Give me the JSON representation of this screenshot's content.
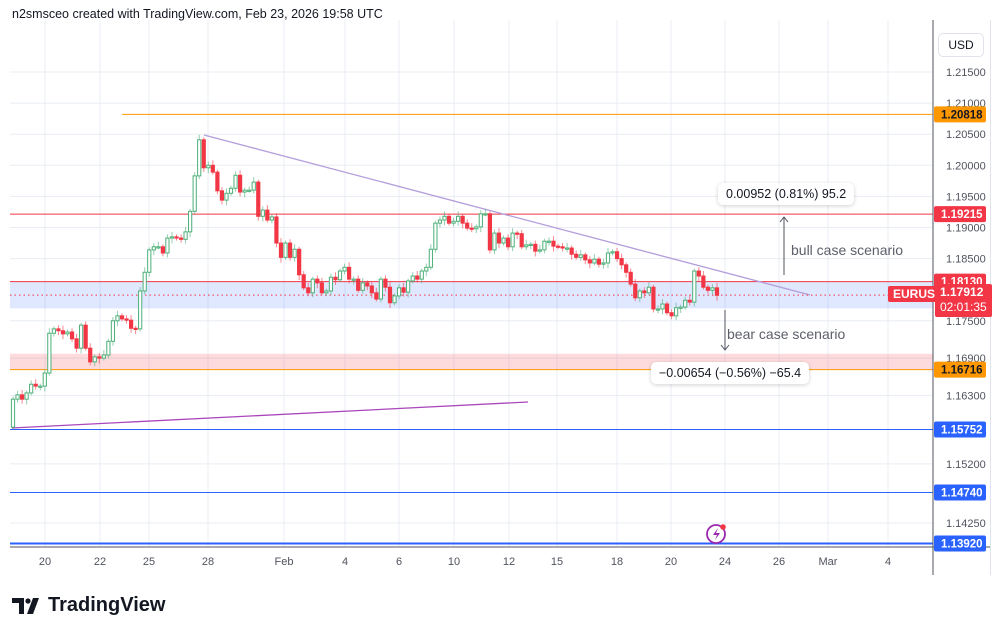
{
  "header": {
    "attribution": "n2smsceo created with TradingView.com, Feb 23, 2026 19:58 UTC"
  },
  "currency_button": "USD",
  "footer": {
    "logo": "TradingView"
  },
  "colors": {
    "up": "#26a69a",
    "upHollow": "#4caf78",
    "down": "#f23645",
    "orange": "#ff9800",
    "blue": "#2962ff",
    "red": "#f23645",
    "purple": "#b39ddb",
    "magenta": "#ab47bc"
  },
  "chart_data": {
    "type": "candlestick",
    "symbol": "EURUSD",
    "ylim": [
      1.1385,
      1.2205
    ],
    "y_ticks": [
      "1.21500",
      "1.21000",
      "1.20500",
      "1.20000",
      "1.19500",
      "1.19000",
      "1.18500",
      "1.17500",
      "1.16900",
      "1.16300",
      "1.15200",
      "1.14250"
    ],
    "x_ticks": [
      "20",
      "22",
      "25",
      "28",
      "Feb",
      "4",
      "6",
      "10",
      "12",
      "15",
      "18",
      "20",
      "24",
      "26",
      "Mar",
      "4"
    ],
    "first_open": 1.1579,
    "closes": [
      1.1624,
      1.1631,
      1.1624,
      1.1634,
      1.1648,
      1.1645,
      1.1645,
      1.1666,
      1.173,
      1.1737,
      1.1734,
      1.1729,
      1.1732,
      1.1721,
      1.1706,
      1.1743,
      1.1706,
      1.1684,
      1.1692,
      1.169,
      1.1695,
      1.1717,
      1.175,
      1.1758,
      1.1753,
      1.1751,
      1.1738,
      1.1737,
      1.1798,
      1.1828,
      1.1864,
      1.1869,
      1.1869,
      1.1859,
      1.1883,
      1.1885,
      1.1883,
      1.1881,
      1.1893,
      1.1926,
      1.1983,
      1.2041,
      1.1996,
      1.2,
      1.1989,
      1.1959,
      1.1944,
      1.1955,
      1.1963,
      1.1984,
      1.1957,
      1.196,
      1.196,
      1.1973,
      1.1918,
      1.1928,
      1.1912,
      1.1917,
      1.1875,
      1.1852,
      1.1875,
      1.1852,
      1.1865,
      1.1824,
      1.1803,
      1.1795,
      1.1817,
      1.1811,
      1.1795,
      1.1798,
      1.182,
      1.1816,
      1.183,
      1.1836,
      1.1817,
      1.1817,
      1.1799,
      1.1811,
      1.1806,
      1.1795,
      1.1785,
      1.1817,
      1.1804,
      1.1779,
      1.179,
      1.1803,
      1.1796,
      1.1814,
      1.1822,
      1.1817,
      1.183,
      1.1836,
      1.1865,
      1.1907,
      1.1912,
      1.1918,
      1.1907,
      1.191,
      1.1918,
      1.1907,
      1.1899,
      1.1898,
      1.1901,
      1.1922,
      1.1922,
      1.1864,
      1.1891,
      1.1875,
      1.1883,
      1.1869,
      1.1891,
      1.189,
      1.1869,
      1.1872,
      1.1873,
      1.1862,
      1.1864,
      1.1878,
      1.1878,
      1.187,
      1.1869,
      1.1867,
      1.1867,
      1.1857,
      1.1852,
      1.1856,
      1.1848,
      1.1843,
      1.1849,
      1.1841,
      1.1843,
      1.1859,
      1.1861,
      1.185,
      1.184,
      1.1828,
      1.1809,
      1.1787,
      1.1798,
      1.1795,
      1.1804,
      1.1769,
      1.1769,
      1.1777,
      1.1763,
      1.1758,
      1.1771,
      1.1772,
      1.1783,
      1.178,
      1.183,
      1.1822,
      1.1804,
      1.1799,
      1.1803,
      1.1791
    ],
    "levels": [
      {
        "price": 1.20818,
        "label": "1.20818",
        "color": "#ff9800"
      },
      {
        "price": 1.19215,
        "label": "1.19215",
        "color": "#f23645"
      },
      {
        "price": 1.1813,
        "label": "1.18130",
        "color": "#f23645"
      },
      {
        "price": 1.16716,
        "label": "1.16716",
        "color": "#ff9800"
      },
      {
        "price": 1.15752,
        "label": "1.15752",
        "color": "#2962ff"
      },
      {
        "price": 1.1474,
        "label": "1.14740",
        "color": "#2962ff"
      },
      {
        "price": 1.1392,
        "label": "1.13920",
        "color": "#2962ff"
      }
    ],
    "zones": [
      {
        "from": 1.1813,
        "to": 1.177,
        "color": "rgba(41,98,255,0.15)"
      },
      {
        "from": 1.1697,
        "to": 1.1672,
        "color": "rgba(242,54,69,0.18)"
      }
    ],
    "current": {
      "price": 1.17912,
      "label": "1.17912",
      "countdown": "02:01:35"
    },
    "annotations": {
      "bull_measure": "0.00952 (0.81%) 95.2",
      "bull_text": "bull case scenario",
      "bear_measure": "−0.00654 (−0.56%) −65.4",
      "bear_text": "bear case scenario"
    }
  }
}
